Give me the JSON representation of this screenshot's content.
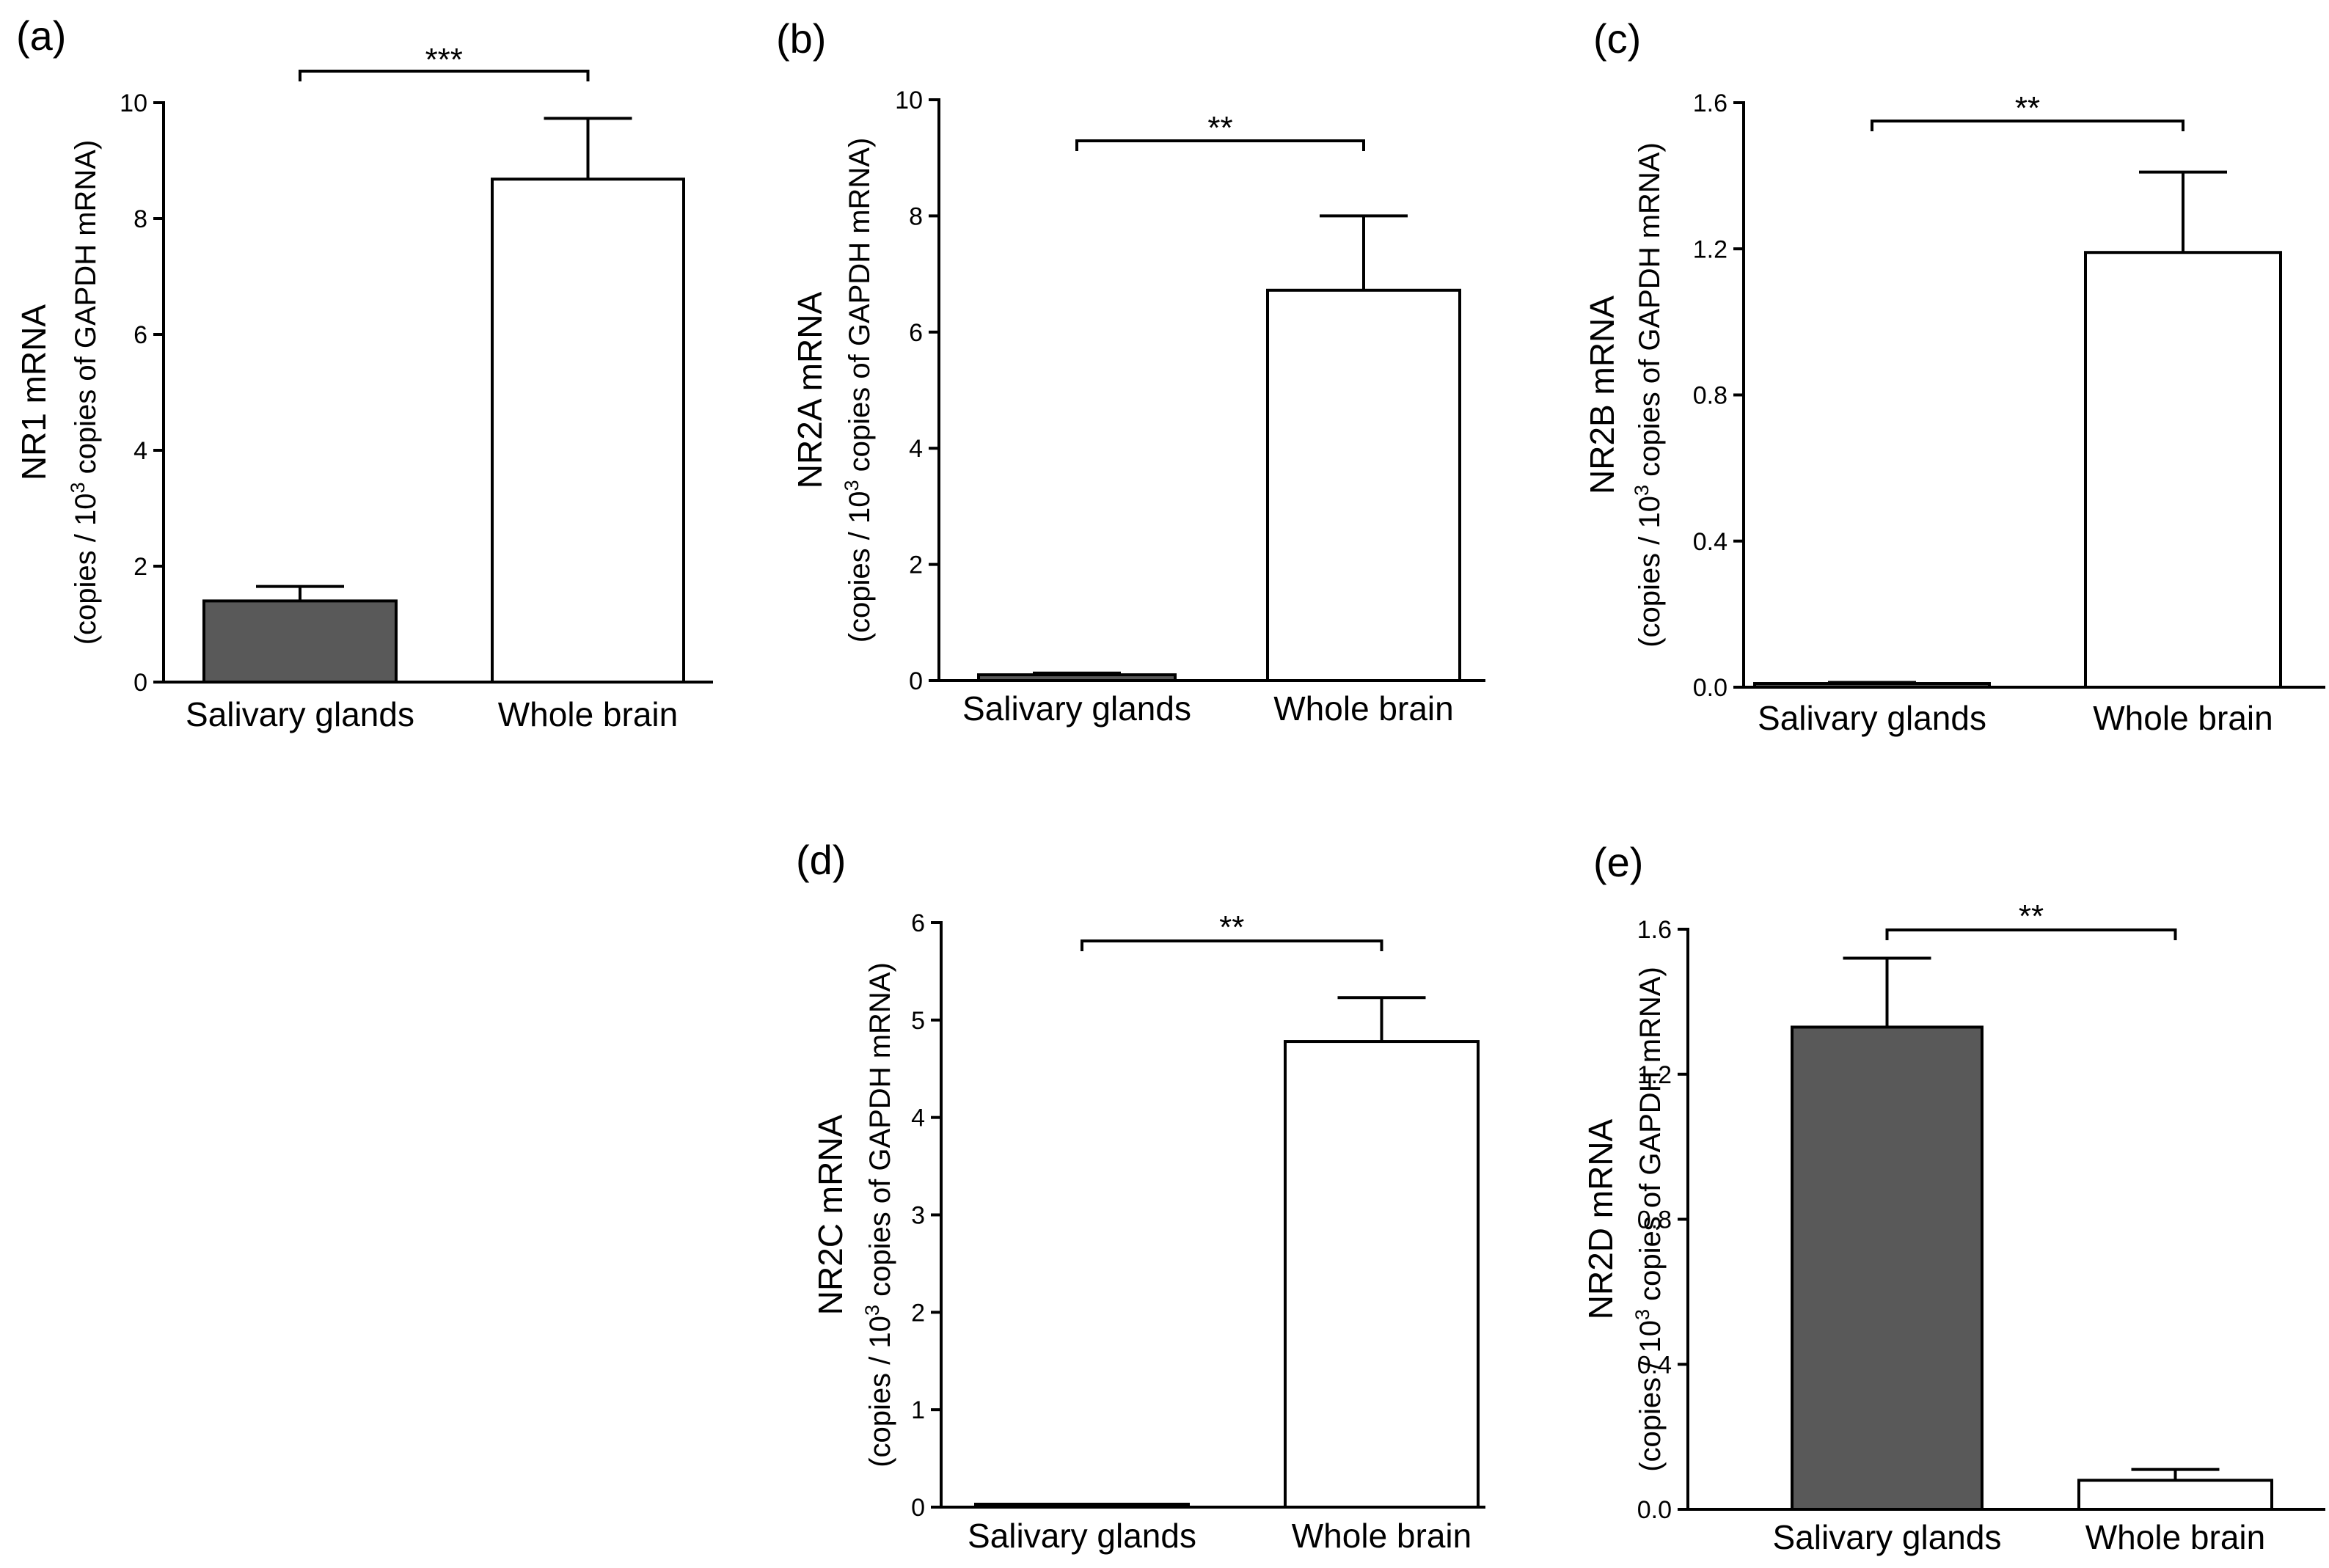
{
  "figure": {
    "panels": [
      "a",
      "b",
      "c",
      "d",
      "e"
    ]
  },
  "colors": {
    "salivary_fill": "#595959",
    "brain_fill": "#ffffff",
    "axis": "#000000"
  },
  "chart_data": [
    {
      "id": "a",
      "panel_label": "(a)",
      "type": "bar",
      "ylabel": "NR1 mRNA",
      "ylabel_sub_prefix": "(copies / 10",
      "ylabel_sup": "3",
      "ylabel_sub_suffix": " copies of GAPDH mRNA)",
      "categories": [
        "Salivary glands",
        "Whole brain"
      ],
      "values": [
        1.4,
        8.68
      ],
      "errors": [
        0.25,
        1.05
      ],
      "fills": [
        "#595959",
        "#ffffff"
      ],
      "ylim": [
        0,
        10
      ],
      "yticks": [
        "0",
        "2",
        "4",
        "6",
        "8",
        "10"
      ],
      "ytick_values": [
        0,
        2,
        4,
        6,
        8,
        10
      ],
      "significance": "***"
    },
    {
      "id": "b",
      "panel_label": "(b)",
      "type": "bar",
      "ylabel": "NR2A mRNA",
      "ylabel_sub_prefix": "(copies / 10",
      "ylabel_sup": "3",
      "ylabel_sub_suffix": " copies of GAPDH mRNA)",
      "categories": [
        "Salivary glands",
        "Whole brain"
      ],
      "values": [
        0.1,
        6.72
      ],
      "errors": [
        0.03,
        1.28
      ],
      "fills": [
        "#595959",
        "#ffffff"
      ],
      "ylim": [
        0,
        10
      ],
      "yticks": [
        "0",
        "2",
        "4",
        "6",
        "8",
        "10"
      ],
      "ytick_values": [
        0,
        2,
        4,
        6,
        8,
        10
      ],
      "significance": "**"
    },
    {
      "id": "c",
      "panel_label": "(c)",
      "type": "bar",
      "ylabel": "NR2B mRNA",
      "ylabel_sub_prefix": "(copies / 10",
      "ylabel_sup": "3",
      "ylabel_sub_suffix": " copies of GAPDH mRNA)",
      "categories": [
        "Salivary glands",
        "Whole brain"
      ],
      "values": [
        0.01,
        1.19
      ],
      "errors": [
        0.003,
        0.22
      ],
      "fills": [
        "#595959",
        "#ffffff"
      ],
      "ylim": [
        0,
        1.6
      ],
      "yticks": [
        "0.0",
        "0.4",
        "0.8",
        "1.2",
        "1.6"
      ],
      "ytick_values": [
        0,
        0.4,
        0.8,
        1.2,
        1.6
      ],
      "significance": "**"
    },
    {
      "id": "d",
      "panel_label": "(d)",
      "type": "bar",
      "ylabel": "NR2C mRNA",
      "ylabel_sub_prefix": "(copies / 10",
      "ylabel_sup": "3",
      "ylabel_sub_suffix": " copies of GAPDH mRNA)",
      "categories": [
        "Salivary glands",
        "Whole brain"
      ],
      "values": [
        0.02,
        4.78
      ],
      "errors": [
        0.005,
        0.45
      ],
      "fills": [
        "#595959",
        "#ffffff"
      ],
      "ylim": [
        0,
        6
      ],
      "yticks": [
        "0",
        "1",
        "2",
        "3",
        "4",
        "5",
        "6"
      ],
      "ytick_values": [
        0,
        1,
        2,
        3,
        4,
        5,
        6
      ],
      "significance": "**"
    },
    {
      "id": "e",
      "panel_label": "(e)",
      "type": "bar",
      "ylabel": "NR2D mRNA",
      "ylabel_sub_prefix": "(copies / 10",
      "ylabel_sup": "3",
      "ylabel_sub_suffix": " copies of GAPDH mRNA)",
      "categories": [
        "Salivary glands",
        "Whole brain"
      ],
      "values": [
        1.33,
        0.08
      ],
      "errors": [
        0.19,
        0.03
      ],
      "fills": [
        "#595959",
        "#ffffff"
      ],
      "ylim": [
        0,
        1.6
      ],
      "yticks": [
        "0.0",
        "0.4",
        "0.8",
        "1.2",
        "1.6"
      ],
      "ytick_values": [
        0,
        0.4,
        0.8,
        1.2,
        1.6
      ],
      "significance": "**"
    }
  ]
}
